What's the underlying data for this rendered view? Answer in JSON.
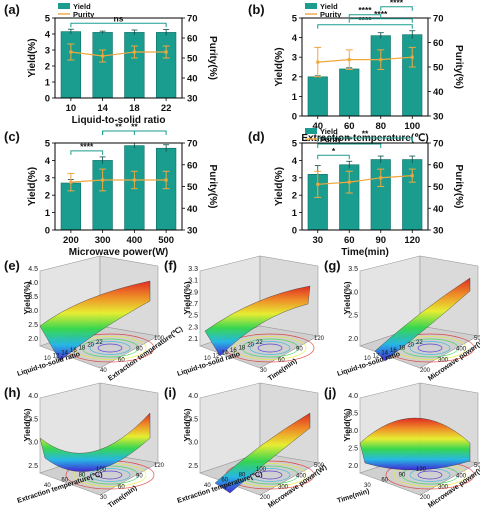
{
  "colors": {
    "bar": "#1a9d8f",
    "bar_edge": "#0f6f66",
    "line": "#f0a73d",
    "sig": "#1a9d8f",
    "text": "#111111"
  },
  "chart_data": [
    {
      "label": "(a)",
      "type": "bar",
      "xlabel": "Liquid-to-solid ratio",
      "ylabel": "Yield(%)",
      "y2label": "Purity(%)",
      "legend": [
        "Yield",
        "Purity"
      ],
      "categories": [
        "10",
        "14",
        "18",
        "22"
      ],
      "values": [
        4.15,
        4.1,
        4.1,
        4.1
      ],
      "errors": [
        0.15,
        0.08,
        0.15,
        0.18
      ],
      "purity": [
        53,
        51,
        53,
        53
      ],
      "purity_err": [
        4,
        3,
        3,
        3
      ],
      "ylim": [
        0,
        5
      ],
      "y2lim": [
        30,
        70
      ],
      "yticks": [
        0,
        1,
        2,
        3,
        4,
        5
      ],
      "y2ticks": [
        30,
        40,
        50,
        60,
        70
      ],
      "sig": [
        {
          "a": 0,
          "b": 3,
          "txt": "ns",
          "level": 0
        }
      ]
    },
    {
      "label": "(b)",
      "type": "bar",
      "xlabel": "Extraction temperature(℃)",
      "ylabel": "Yield(%)",
      "y2label": "Purity(%)",
      "legend": [
        "Yield",
        "Purity"
      ],
      "categories": [
        "40",
        "60",
        "80",
        "100"
      ],
      "values": [
        2.0,
        2.4,
        4.1,
        4.15
      ],
      "errors": [
        0.05,
        0.06,
        0.15,
        0.2
      ],
      "purity": [
        52,
        53,
        53,
        54
      ],
      "purity_err": [
        6,
        4,
        4,
        4
      ],
      "ylim": [
        0,
        5
      ],
      "y2lim": [
        30,
        70
      ],
      "yticks": [
        0,
        1,
        2,
        3,
        4,
        5
      ],
      "y2ticks": [
        30,
        40,
        50,
        60,
        70
      ],
      "sig": [
        {
          "a": 0,
          "b": 3,
          "txt": "****",
          "level": 0
        },
        {
          "a": 1,
          "b": 3,
          "txt": "****",
          "level": 1
        },
        {
          "a": 1,
          "b": 2,
          "txt": "****",
          "level": 2
        },
        {
          "a": 2,
          "b": 3,
          "txt": "****",
          "level": 3
        }
      ]
    },
    {
      "label": "(c)",
      "type": "bar",
      "xlabel": "Microwave power(W)",
      "ylabel": "Yield(%)",
      "y2label": "Purity(%)",
      "legend": [],
      "categories": [
        "200",
        "300",
        "400",
        "500"
      ],
      "values": [
        2.7,
        4.0,
        4.85,
        4.7
      ],
      "errors": [
        0.2,
        0.2,
        0.15,
        0.2
      ],
      "purity": [
        52,
        53,
        53,
        53
      ],
      "purity_err": [
        4,
        5,
        4,
        4
      ],
      "ylim": [
        0,
        5
      ],
      "y2lim": [
        30,
        70
      ],
      "yticks": [
        0,
        1,
        2,
        3,
        4,
        5
      ],
      "y2ticks": [
        30,
        40,
        50,
        60,
        70
      ],
      "sig": [
        {
          "a": 0,
          "b": 1,
          "txt": "****",
          "level": 0
        },
        {
          "a": 1,
          "b": 2,
          "txt": "**",
          "level": 1
        },
        {
          "a": 1,
          "b": 3,
          "txt": "**",
          "level": 2
        }
      ]
    },
    {
      "label": "(d)",
      "type": "bar",
      "xlabel": "Time(min)",
      "ylabel": "Yield(%)",
      "y2label": "Purity(%)",
      "legend": [
        "Yield",
        "Purity"
      ],
      "categories": [
        "30",
        "60",
        "90",
        "120"
      ],
      "values": [
        3.2,
        3.75,
        4.05,
        4.05
      ],
      "errors": [
        0.5,
        0.2,
        0.2,
        0.2
      ],
      "purity": [
        51,
        52,
        54,
        55
      ],
      "purity_err": [
        6,
        5,
        4,
        3
      ],
      "ylim": [
        0,
        5
      ],
      "y2lim": [
        30,
        70
      ],
      "yticks": [
        0,
        1,
        2,
        3,
        4,
        5
      ],
      "y2ticks": [
        30,
        40,
        50,
        60,
        70
      ],
      "sig": [
        {
          "a": 0,
          "b": 1,
          "txt": "*",
          "level": 0
        },
        {
          "a": 0,
          "b": 2,
          "txt": "**",
          "level": 1
        },
        {
          "a": 0,
          "b": 3,
          "txt": "**",
          "level": 2
        }
      ]
    }
  ],
  "surfaces": [
    {
      "label": "(e)",
      "zlabel": "Yield(%)",
      "xlabel": "Liquid-to-solid ratio",
      "ylabel": "Extraction temperature(℃)",
      "zticks": [
        "2.0",
        "2.5",
        "3.0",
        "3.5",
        "4.0",
        "4.5"
      ],
      "xticks": [
        "10",
        "12",
        "14",
        "16",
        "18",
        "20",
        "22"
      ],
      "yticks": [
        "40",
        "60",
        "80",
        "100"
      ]
    },
    {
      "label": "(f)",
      "zlabel": "Yield(%)",
      "xlabel": "Liquid-to-solid ratio",
      "ylabel": "Time(min)",
      "zticks": [
        "2.1",
        "2.3",
        "2.5",
        "2.7",
        "2.9",
        "3.1",
        "3.3"
      ],
      "xticks": [
        "10",
        "12",
        "14",
        "16",
        "18",
        "20",
        "22"
      ],
      "yticks": [
        "30",
        "60",
        "90",
        "120"
      ]
    },
    {
      "label": "(g)",
      "zlabel": "Yield(%)",
      "xlabel": "Liquid-to-solid ratio",
      "ylabel": "Microwave power(W)",
      "zticks": [
        "2.0",
        "2.5",
        "3.0",
        "3.5"
      ],
      "xticks": [
        "10",
        "12",
        "14",
        "16",
        "18",
        "20",
        "22"
      ],
      "yticks": [
        "200",
        "300",
        "400",
        "500"
      ]
    },
    {
      "label": "(h)",
      "zlabel": "Yield(%)",
      "xlabel": "Extraction temperature(℃)",
      "ylabel": "Time(min)",
      "zticks": [
        "2.5",
        "3.0",
        "3.5",
        "4.0"
      ],
      "xticks": [
        "40",
        "60",
        "80",
        "100"
      ],
      "yticks": [
        "30",
        "60",
        "90",
        "120"
      ]
    },
    {
      "label": "(i)",
      "zlabel": "Yield(%)",
      "xlabel": "Extraction temperature(℃)",
      "ylabel": "Microwave power(W)",
      "zticks": [
        "2.5",
        "3.0",
        "3.5",
        "4.0"
      ],
      "xticks": [
        "40",
        "60",
        "80",
        "100"
      ],
      "yticks": [
        "200",
        "300",
        "400",
        "500"
      ]
    },
    {
      "label": "(j)",
      "zlabel": "Yield(%)",
      "xlabel": "Time(min)",
      "ylabel": "Microwave power(W)",
      "zticks": [
        "2.0",
        "2.5",
        "3.0",
        "3.5",
        "4.0"
      ],
      "xticks": [
        "30",
        "60",
        "90",
        "120"
      ],
      "yticks": [
        "200",
        "300",
        "400",
        "500"
      ]
    }
  ]
}
